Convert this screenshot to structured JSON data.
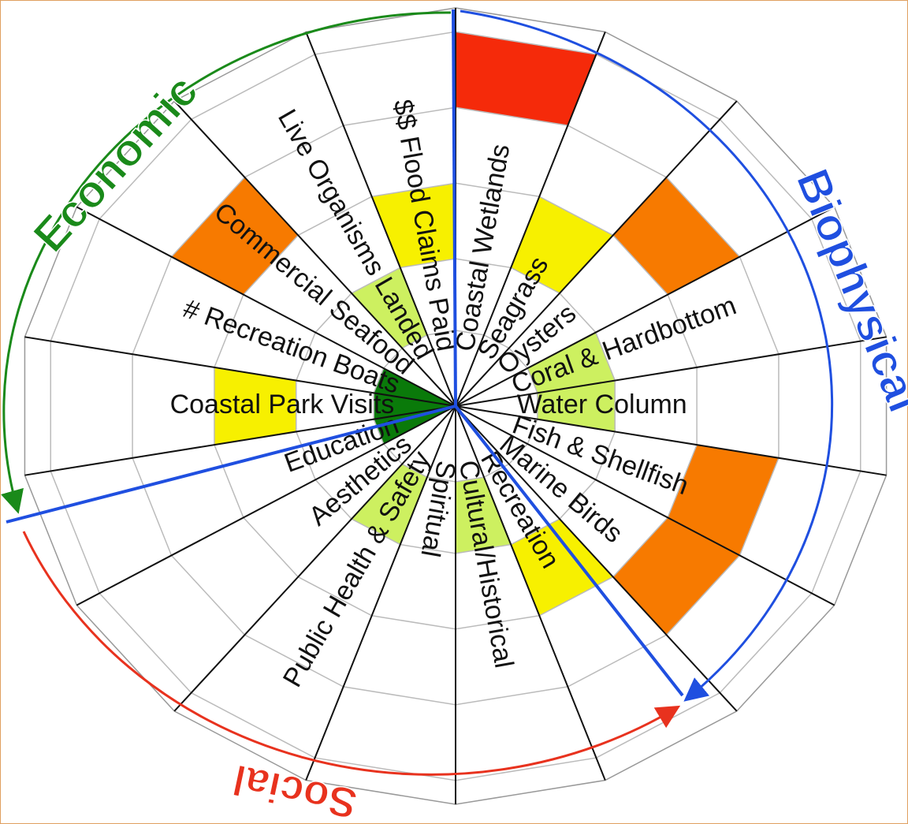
{
  "groups": [
    {
      "label": "Economic",
      "color": "#1a8a1a"
    },
    {
      "label": "Biophysical",
      "color": "#1f4fe0"
    },
    {
      "label": "Social",
      "color": "#e8321e"
    }
  ],
  "sectors": [
    {
      "label": "Coastal Wetlands",
      "cells": [
        {
          "ring": 4,
          "color": "#f52a0a"
        }
      ]
    },
    {
      "label": "Seagrass",
      "cells": [
        {
          "ring": 2,
          "color": "#f7f000"
        }
      ]
    },
    {
      "label": "Oysters",
      "cells": [
        {
          "ring": 3,
          "color": "#f77a00"
        }
      ]
    },
    {
      "label": "Coral & Hardbottom",
      "cells": [
        {
          "ring": 1,
          "color": "#cdf060"
        }
      ]
    },
    {
      "label": "Water Column",
      "cells": [
        {
          "ring": 1,
          "color": "#cdf060"
        }
      ]
    },
    {
      "label": "Fish & Shellfish",
      "cells": [
        {
          "ring": 3,
          "color": "#f77a00"
        }
      ]
    },
    {
      "label": "Marine Birds",
      "cells": [
        {
          "ring": 3,
          "color": "#f77a00"
        }
      ]
    },
    {
      "label": "Recreation",
      "cells": [
        {
          "ring": 2,
          "color": "#f7f000"
        }
      ]
    },
    {
      "label": "Cultural/Historical",
      "cells": [
        {
          "ring": 1,
          "color": "#cdf060"
        }
      ]
    },
    {
      "label": "Spiritual",
      "cells": []
    },
    {
      "label": "Public Health & Safety",
      "cells": [
        {
          "ring": 1,
          "color": "#cdf060"
        }
      ]
    },
    {
      "label": "Aesthetics",
      "cells": []
    },
    {
      "label": "Education",
      "cells": [
        {
          "ring": 0,
          "color": "#0a7a0a"
        }
      ]
    },
    {
      "label": "Coastal Park Visits",
      "cells": [
        {
          "ring": 0,
          "color": "#0a7a0a"
        },
        {
          "ring": 2,
          "color": "#f7f000"
        }
      ]
    },
    {
      "label": "# Recreation Boats",
      "cells": [
        {
          "ring": 0,
          "color": "#0a7a0a"
        }
      ]
    },
    {
      "label": "Commercial Seafood",
      "cells": [
        {
          "ring": 3,
          "color": "#f77a00"
        }
      ]
    },
    {
      "label": "Live Organisms Landed",
      "cells": [
        {
          "ring": 1,
          "color": "#cdf060"
        }
      ]
    },
    {
      "label": "$$ Flood Claims Paid",
      "cells": [
        {
          "ring": 2,
          "color": "#f7f000"
        }
      ]
    }
  ]
}
